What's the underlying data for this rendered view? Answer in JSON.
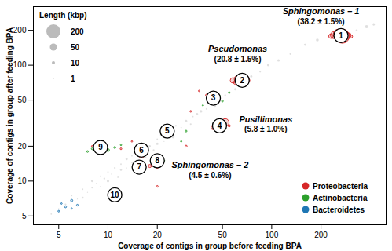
{
  "chart_data": {
    "type": "scatter",
    "x_label": "Coverage of contigs in group before feeding BPA",
    "y_label": "Coverage of contigs in group after feeding BPA",
    "log": true,
    "xlim": [
      3.5,
      500
    ],
    "ylim": [
      4.2,
      320
    ],
    "xticks": [
      5,
      10,
      20,
      50,
      100,
      200
    ],
    "yticks": [
      5,
      10,
      20,
      50,
      100,
      200
    ],
    "size_legend": {
      "title": "Length (kbp)",
      "values": [
        200,
        50,
        10,
        1
      ]
    },
    "legend": "bottom-right",
    "series": [
      {
        "color": "#c4c4c4",
        "x": [
          4.5,
          5,
          5.5,
          6,
          6.5,
          7,
          7,
          7.5,
          8,
          8,
          8.5,
          9,
          9,
          9.5,
          10,
          10,
          10.5,
          11,
          11.5,
          12,
          12,
          13,
          13,
          14,
          14,
          15,
          17,
          18,
          19,
          20,
          20,
          21,
          22,
          23,
          24,
          25,
          26,
          28,
          30,
          32,
          33,
          35,
          37,
          40,
          42,
          45,
          52,
          55,
          60,
          65,
          75,
          85,
          95,
          110,
          130,
          160,
          190,
          330,
          380,
          420
        ],
        "y": [
          5.2,
          5.8,
          6.3,
          7.5,
          7,
          7.2,
          8.5,
          8,
          8.8,
          10,
          9.5,
          9,
          11,
          10.5,
          10,
          12,
          11.5,
          13,
          10.8,
          12.5,
          14,
          13,
          15.5,
          14.5,
          16.5,
          15.2,
          16,
          20,
          18.5,
          21,
          23,
          25,
          22,
          26,
          28,
          24,
          30,
          29,
          33,
          31,
          36,
          38,
          40,
          42,
          46,
          44,
          55,
          58,
          62,
          68,
          80,
          88,
          100,
          110,
          125,
          150,
          165,
          200,
          215,
          225
        ],
        "length": [
          2,
          1,
          3,
          2,
          1,
          4,
          2,
          1,
          3,
          5,
          2,
          1,
          2,
          3,
          6,
          2,
          1,
          3,
          2,
          4,
          2,
          1,
          5,
          3,
          2,
          1,
          2,
          4,
          3,
          6,
          2,
          3,
          1,
          4,
          2,
          8,
          3,
          2,
          5,
          3,
          2,
          4,
          6,
          3,
          2,
          5,
          3,
          4,
          6,
          2,
          5,
          3,
          4,
          6,
          3,
          5,
          8,
          4,
          10,
          6
        ]
      },
      {
        "name": "Proteobacteria",
        "color": "#d62728",
        "x": [
          230,
          240,
          250,
          255,
          265,
          270,
          275,
          285,
          295,
          305,
          260,
          280,
          58,
          62,
          65,
          68,
          72,
          60,
          70,
          44,
          47,
          50,
          52,
          48,
          55,
          15,
          16,
          17,
          15,
          16,
          18,
          19,
          20,
          12,
          14,
          30,
          32,
          36,
          40,
          8,
          20
        ],
        "y": [
          178,
          182,
          176,
          185,
          180,
          178,
          183,
          179,
          181,
          177,
          172,
          188,
          74,
          76,
          73,
          75,
          74,
          71,
          78,
          29,
          31,
          30,
          32,
          28,
          30,
          17.5,
          16.5,
          17.2,
          14,
          13.8,
          13.5,
          14,
          13.2,
          19,
          22,
          20,
          40,
          60,
          55,
          20,
          9
        ],
        "length": [
          20,
          50,
          10,
          100,
          30,
          200,
          15,
          60,
          25,
          10,
          5,
          8,
          30,
          50,
          20,
          100,
          10,
          15,
          8,
          20,
          40,
          10,
          60,
          8,
          5,
          10,
          20,
          8,
          5,
          15,
          10,
          20,
          6,
          3,
          2,
          4,
          3,
          2,
          5,
          2,
          3
        ]
      },
      {
        "name": "Actinobacteria",
        "color": "#2ca02c",
        "x": [
          8,
          9,
          10,
          11,
          12,
          7.5,
          42,
          45,
          48,
          50,
          28,
          30,
          38,
          55,
          22
        ],
        "y": [
          19,
          20,
          18.5,
          19.5,
          20.5,
          18,
          52,
          50,
          54,
          49,
          22,
          27,
          45,
          58,
          15
        ],
        "length": [
          3,
          5,
          8,
          4,
          2,
          3,
          5,
          8,
          4,
          3,
          2,
          3,
          2,
          3,
          2
        ]
      },
      {
        "name": "Bacteroidetes",
        "color": "#1f77b4",
        "x": [
          5,
          5.5,
          6,
          6,
          5.2,
          6.5
        ],
        "y": [
          5.5,
          6,
          5.8,
          6.8,
          6.4,
          6.2
        ],
        "length": [
          3,
          4,
          2,
          5,
          2,
          3
        ]
      }
    ],
    "groups": [
      {
        "label": "1",
        "x": 265,
        "y": 180
      },
      {
        "label": "2",
        "x": 66,
        "y": 74
      },
      {
        "label": "3",
        "x": 44,
        "y": 52
      },
      {
        "label": "4",
        "x": 48,
        "y": 30
      },
      {
        "label": "5",
        "x": 23,
        "y": 27
      },
      {
        "label": "6",
        "x": 16,
        "y": 18.5
      },
      {
        "label": "7",
        "x": 15.5,
        "y": 13.2
      },
      {
        "label": "8",
        "x": 20,
        "y": 15
      },
      {
        "label": "9",
        "x": 9,
        "y": 19.5
      },
      {
        "label": "10",
        "x": 11,
        "y": 7.6
      }
    ],
    "annotations": [
      {
        "taxon": "Sphingomonas – 1",
        "abundance": "(38.2 ± 1.5%)",
        "x": 200,
        "y": 265
      },
      {
        "taxon": "Pseudomonas",
        "abundance": "(20.8 ± 1.5%)",
        "x": 62,
        "y": 125
      },
      {
        "taxon": "Pusillimonas",
        "abundance": "(5.8 ± 1.0%)",
        "x": 92,
        "y": 31
      },
      {
        "taxon": "Sphingomonas – 2",
        "abundance": "(4.5 ± 0.6%)",
        "x": 42,
        "y": 12.5
      }
    ]
  }
}
